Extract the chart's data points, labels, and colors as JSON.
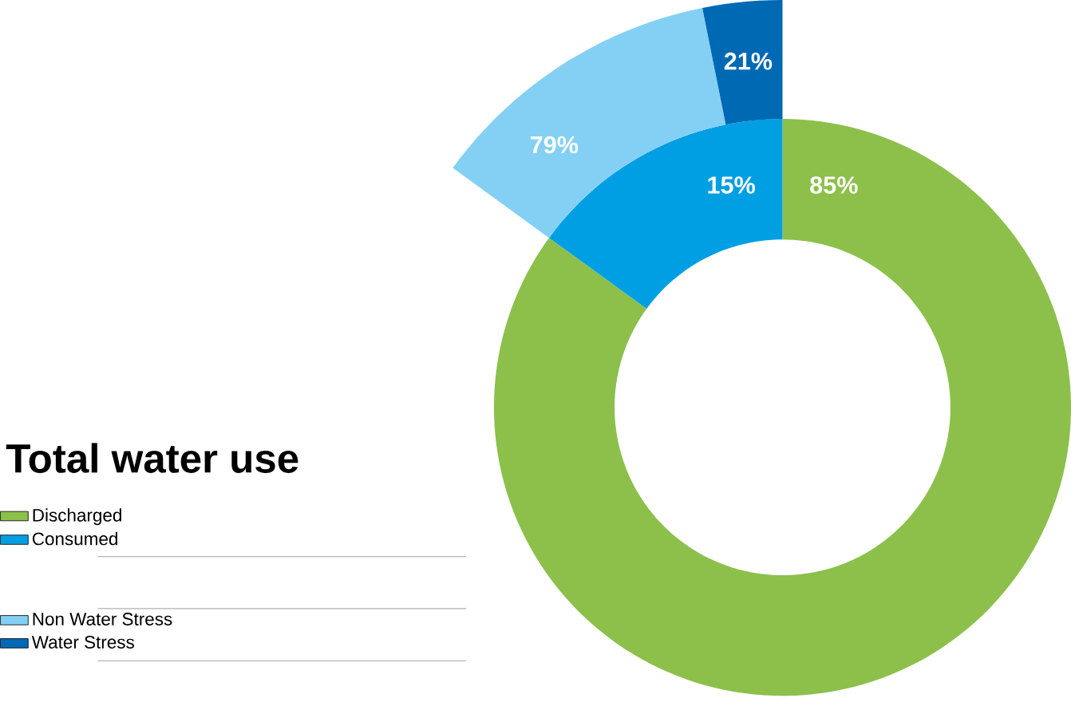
{
  "chart_data": [
    {
      "type": "donut",
      "title": "Total water use",
      "categories": [
        "Discharged",
        "Consumed"
      ],
      "values": [
        85,
        15
      ],
      "colors": [
        "#8cc04b",
        "#009fe3"
      ],
      "value_labels": [
        "85%",
        "15%"
      ],
      "legend": "bottom left"
    },
    {
      "type": "donut",
      "categories": [
        "Non Water Stress",
        "Water Stress"
      ],
      "values": [
        79,
        21
      ],
      "colors": [
        "#84d0f5",
        "#0069b4"
      ],
      "value_labels": [
        "79%",
        "21%"
      ],
      "legend": "bottom left"
    }
  ]
}
